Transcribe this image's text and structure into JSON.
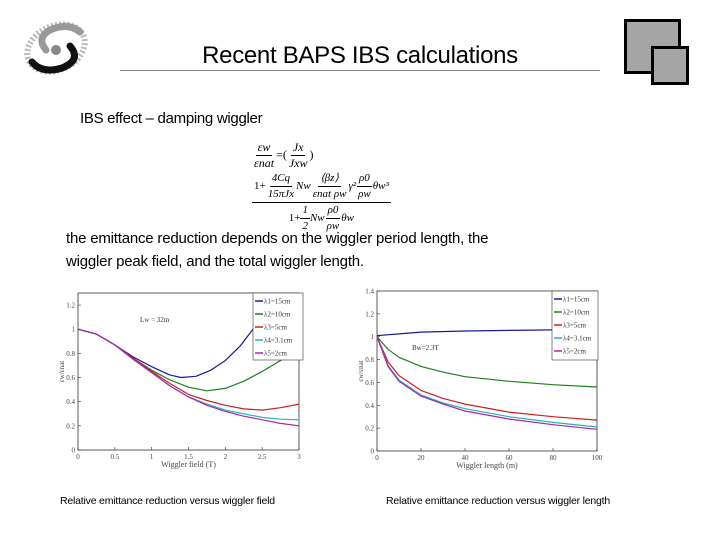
{
  "slide": {
    "title": "Recent BAPS IBS calculations",
    "subtitle": "IBS effect – damping wiggler",
    "paragraph_line1": "the emittance reduction depends on the wiggler period length, the",
    "paragraph_line2": "wiggler peak field, and the total wiggler length.",
    "formula": {
      "lhs_num": "εw",
      "lhs_den": "εnat",
      "eq": "=(",
      "j_num": "Jx",
      "j_den": "Jxw",
      "close": ")",
      "num_one": "1+",
      "c_num": "4Cq",
      "c_den": "15πJx",
      "nw": "Nw",
      "b_num": "⟨βz⟩",
      "b_den": "εnat ρw",
      "gamma": "γ²",
      "r_num": "ρ0",
      "r_den": "ρw",
      "theta3": "θw³",
      "den_one": "1+",
      "half_num": "1",
      "half_den": "2",
      "nw2": "Nw",
      "r2_num": "ρ0",
      "r2_den": "ρw",
      "theta": "θw"
    },
    "caption_left": "Relative emittance reduction versus wiggler field",
    "caption_right": "Relative emittance reduction versus wiggler length",
    "colors": {
      "l1": "#1a1a9a",
      "l2": "#1e7f1e",
      "l3": "#cc1f1f",
      "l4": "#22b5b5",
      "l5": "#b020b0"
    }
  },
  "chart_data": [
    {
      "type": "line",
      "xlabel": "Wiggler field (T)",
      "ylabel": "εw/εnat",
      "xlim": [
        0,
        3
      ],
      "ylim": [
        0,
        1.3
      ],
      "xticks": [
        "0",
        "0.5",
        "1",
        "1.5",
        "2",
        "2.5",
        "3"
      ],
      "yticks": [
        "0",
        "0.2",
        "0.4",
        "0.6",
        "0.8",
        "1",
        "1.2"
      ],
      "annotation": "Lw = 32m",
      "legend": "top-right",
      "series": [
        {
          "name": "λ1=15cm",
          "x": [
            0,
            0.25,
            0.5,
            0.75,
            1,
            1.25,
            1.4,
            1.6,
            1.8,
            2,
            2.2,
            2.4,
            2.6,
            2.65
          ],
          "y": [
            1,
            0.96,
            0.87,
            0.77,
            0.69,
            0.62,
            0.6,
            0.61,
            0.66,
            0.74,
            0.86,
            1.02,
            1.2,
            1.26
          ]
        },
        {
          "name": "λ2=10cm",
          "x": [
            0,
            0.25,
            0.5,
            0.75,
            1,
            1.25,
            1.5,
            1.75,
            2,
            2.25,
            2.5,
            2.8
          ],
          "y": [
            1,
            0.96,
            0.87,
            0.76,
            0.66,
            0.58,
            0.52,
            0.49,
            0.51,
            0.57,
            0.65,
            0.76
          ]
        },
        {
          "name": "λ3=5cm",
          "x": [
            0,
            0.25,
            0.5,
            0.75,
            1,
            1.25,
            1.5,
            1.75,
            2,
            2.25,
            2.5,
            2.75,
            3
          ],
          "y": [
            1,
            0.96,
            0.87,
            0.76,
            0.65,
            0.55,
            0.46,
            0.41,
            0.37,
            0.34,
            0.33,
            0.35,
            0.38
          ]
        },
        {
          "name": "λ4=3.1cm",
          "x": [
            0,
            0.25,
            0.5,
            0.75,
            1,
            1.25,
            1.5,
            1.75,
            2,
            2.25,
            2.5,
            2.75,
            3
          ],
          "y": [
            1,
            0.96,
            0.87,
            0.75,
            0.64,
            0.53,
            0.44,
            0.38,
            0.33,
            0.3,
            0.27,
            0.255,
            0.25
          ]
        },
        {
          "name": "λ5=2cm",
          "x": [
            0,
            0.25,
            0.5,
            0.75,
            1,
            1.25,
            1.5,
            1.75,
            2,
            2.25,
            2.5,
            2.75,
            3
          ],
          "y": [
            1,
            0.96,
            0.87,
            0.75,
            0.64,
            0.53,
            0.44,
            0.37,
            0.32,
            0.28,
            0.25,
            0.22,
            0.2
          ]
        }
      ]
    },
    {
      "type": "line",
      "xlabel": "Wiggler length (m)",
      "ylabel": "εw/εnat",
      "xlim": [
        0,
        100
      ],
      "ylim": [
        0,
        1.4
      ],
      "xticks": [
        "0",
        "20",
        "40",
        "60",
        "80",
        "100"
      ],
      "yticks": [
        "0",
        "0.2",
        "0.4",
        "0.6",
        "0.8",
        "1",
        "1.2",
        "1.4"
      ],
      "annotation": "Bw=2.3T",
      "legend": "top-right",
      "series": [
        {
          "name": "λ1=15cm",
          "x": [
            0,
            10,
            20,
            40,
            60,
            80,
            100
          ],
          "y": [
            1.01,
            1.025,
            1.04,
            1.05,
            1.055,
            1.06,
            1.06
          ]
        },
        {
          "name": "λ2=10cm",
          "x": [
            0,
            5,
            10,
            20,
            30,
            40,
            60,
            80,
            100
          ],
          "y": [
            1,
            0.89,
            0.82,
            0.74,
            0.69,
            0.65,
            0.61,
            0.58,
            0.56
          ]
        },
        {
          "name": "λ3=5cm",
          "x": [
            0,
            5,
            10,
            20,
            30,
            40,
            60,
            80,
            100
          ],
          "y": [
            1,
            0.78,
            0.66,
            0.53,
            0.46,
            0.41,
            0.34,
            0.3,
            0.27
          ]
        },
        {
          "name": "λ4=3.1cm",
          "x": [
            0,
            5,
            10,
            20,
            30,
            40,
            60,
            80,
            100
          ],
          "y": [
            1,
            0.75,
            0.62,
            0.49,
            0.42,
            0.37,
            0.3,
            0.25,
            0.21
          ]
        },
        {
          "name": "λ5=2cm",
          "x": [
            0,
            5,
            10,
            20,
            30,
            40,
            60,
            80,
            100
          ],
          "y": [
            1,
            0.74,
            0.61,
            0.48,
            0.41,
            0.35,
            0.28,
            0.23,
            0.19
          ]
        }
      ]
    }
  ]
}
